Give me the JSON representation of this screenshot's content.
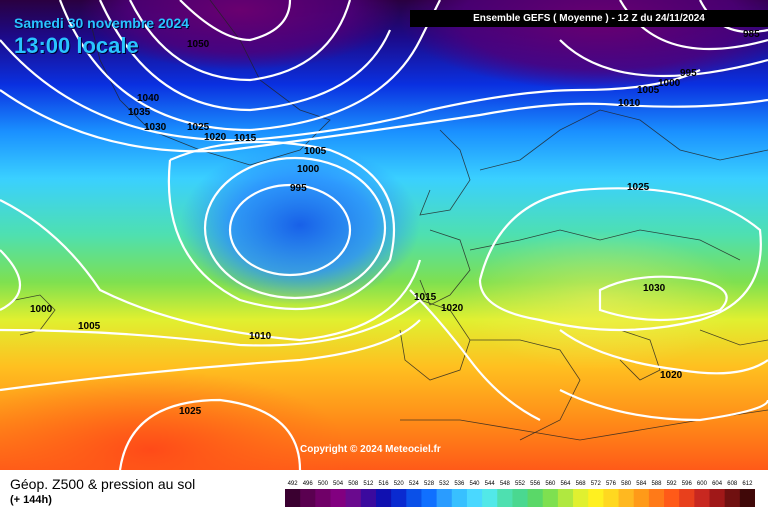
{
  "header": {
    "date_text": "Samedi 30 novembre 2024",
    "time_text": "13:00 locale",
    "ensemble_text": "Ensemble GEFS  ( Moyenne )  -  12 Z du 24/11/2024"
  },
  "copyright": "Copyright © 2024 Meteociel.fr",
  "footer": {
    "title": "Géop. Z500 & pression au sol",
    "subtitle": "(+ 144h)"
  },
  "isobar_labels": [
    "1050",
    "1040",
    "1035",
    "1030",
    "1025",
    "1020",
    "1015",
    "1005",
    "1000",
    "995",
    "1000",
    "1005",
    "1010",
    "1015",
    "1020",
    "1025",
    "1030",
    "1020",
    "1010",
    "1005",
    "1000",
    "1025",
    "995",
    "1000",
    "1005",
    "1010",
    "985"
  ],
  "scale": {
    "values": [
      492,
      496,
      500,
      504,
      508,
      512,
      516,
      520,
      524,
      528,
      532,
      536,
      540,
      544,
      548,
      552,
      556,
      560,
      564,
      568,
      572,
      576,
      580,
      584,
      588,
      592,
      596,
      600,
      604,
      608,
      612
    ],
    "colors": [
      "#3a0030",
      "#5a0050",
      "#700068",
      "#820080",
      "#6a0a8e",
      "#3b0a9e",
      "#1010b0",
      "#0a2ad0",
      "#0a50e8",
      "#1070ff",
      "#2a9cff",
      "#38c0ff",
      "#4ad8ff",
      "#52e8e8",
      "#4ee0b0",
      "#4ad890",
      "#5ad868",
      "#7ee050",
      "#b0e840",
      "#e0f030",
      "#fff020",
      "#ffd820",
      "#ffb820",
      "#ff9a18",
      "#ff7a18",
      "#ff5a18",
      "#e8401c",
      "#c82820",
      "#a01818",
      "#701010",
      "#400808"
    ]
  },
  "colors": {
    "z500_low": "#1868e8",
    "z500_high": "#ff6a1a",
    "isobar": "#ffffff"
  }
}
